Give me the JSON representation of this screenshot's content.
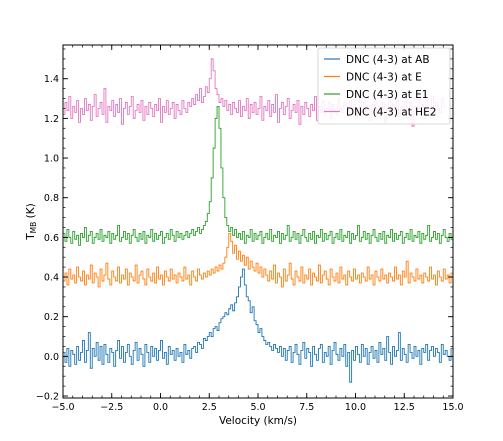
{
  "chart_data": {
    "type": "line",
    "step": true,
    "xlabel": "Velocity (km/s)",
    "ylabel": "T",
    "ylabel_subscript": "MB",
    "ylabel_unit": " (K)",
    "xlim": [
      -5.0,
      15.0
    ],
    "ylim": [
      -0.21,
      1.57
    ],
    "x_ticks": [
      -5.0,
      -2.5,
      0.0,
      2.5,
      5.0,
      7.5,
      10.0,
      12.5,
      15.0
    ],
    "x_tick_labels": [
      "−5.0",
      "−2.5",
      "0.0",
      "2.5",
      "5.0",
      "7.5",
      "10.0",
      "12.5",
      "15.0"
    ],
    "y_ticks": [
      -0.2,
      0.0,
      0.2,
      0.4,
      0.6,
      0.8,
      1.0,
      1.2,
      1.4
    ],
    "y_tick_labels": [
      "−0.2",
      "0.0",
      "0.2",
      "0.4",
      "0.6",
      "0.8",
      "1.0",
      "1.2",
      "1.4"
    ],
    "grid": false,
    "legend_position": "top-right",
    "x_start": -5.0,
    "x_step": 0.1,
    "series": [
      {
        "name": "DNC (4-3) at AB",
        "color": "#1f77b4",
        "values": [
          0.02,
          -0.03,
          0.04,
          -0.05,
          0.03,
          0.01,
          -0.04,
          0.05,
          -0.02,
          0.02,
          0.08,
          -0.03,
          0.03,
          0.12,
          -0.06,
          0.04,
          0.0,
          0.07,
          -0.02,
          0.05,
          -0.04,
          0.06,
          0.01,
          -0.03,
          0.04,
          0.02,
          -0.05,
          0.03,
          0.08,
          -0.01,
          0.05,
          -0.03,
          0.02,
          0.06,
          0.0,
          -0.04,
          0.03,
          0.07,
          -0.02,
          0.04,
          0.01,
          -0.05,
          0.06,
          0.02,
          -0.03,
          0.05,
          0.0,
          0.04,
          -0.02,
          0.03,
          0.08,
          -0.01,
          0.02,
          -0.04,
          0.05,
          0.01,
          0.03,
          -0.02,
          0.04,
          0.0,
          0.02,
          -0.03,
          0.06,
          0.01,
          0.03,
          -0.01,
          0.04,
          0.05,
          0.02,
          0.07,
          0.06,
          0.04,
          0.09,
          0.08,
          0.1,
          0.12,
          0.1,
          0.14,
          0.15,
          0.13,
          0.17,
          0.19,
          0.2,
          0.22,
          0.21,
          0.24,
          0.26,
          0.23,
          0.27,
          0.3,
          0.35,
          0.4,
          0.44,
          0.36,
          0.3,
          0.28,
          0.22,
          0.25,
          0.18,
          0.16,
          0.12,
          0.14,
          0.1,
          0.08,
          0.06,
          0.07,
          0.05,
          0.03,
          0.06,
          0.04,
          0.02,
          0.05,
          0.0,
          0.04,
          -0.02,
          0.03,
          0.05,
          -0.03,
          0.02,
          0.06,
          0.01,
          -0.04,
          0.03,
          0.07,
          -0.01,
          0.04,
          0.02,
          -0.05,
          0.05,
          0.01,
          -0.02,
          0.04,
          0.06,
          -0.03,
          0.02,
          0.0,
          0.05,
          -0.04,
          0.03,
          0.07,
          0.01,
          -0.02,
          0.04,
          0.0,
          0.06,
          -0.05,
          0.02,
          -0.13,
          0.03,
          -0.02,
          0.05,
          0.01,
          -0.03,
          0.06,
          0.0,
          0.04,
          -0.04,
          0.02,
          0.05,
          -0.01,
          0.03,
          -0.03,
          0.07,
          0.01,
          0.04,
          -0.02,
          0.1,
          0.02,
          -0.04,
          0.05,
          0.0,
          0.03,
          0.12,
          -0.02,
          0.04,
          0.01,
          -0.03,
          0.06,
          0.02,
          -0.01,
          0.05,
          0.0,
          0.03,
          -0.04,
          0.04,
          0.02,
          0.06,
          -0.02,
          0.03,
          0.05,
          0.0,
          0.04,
          0.02,
          -0.03,
          0.06,
          0.01,
          0.03,
          0.0,
          -0.02,
          0.04,
          0.02
        ]
      },
      {
        "name": "DNC (4-3) at E",
        "color": "#ff7f0e",
        "values": [
          0.38,
          0.42,
          0.36,
          0.44,
          0.39,
          0.41,
          0.37,
          0.45,
          0.4,
          0.38,
          0.43,
          0.36,
          0.41,
          0.39,
          0.46,
          0.37,
          0.42,
          0.4,
          0.35,
          0.44,
          0.38,
          0.41,
          0.47,
          0.39,
          0.36,
          0.43,
          0.4,
          0.38,
          0.45,
          0.37,
          0.41,
          0.39,
          0.44,
          0.36,
          0.42,
          0.4,
          0.38,
          0.46,
          0.37,
          0.41,
          0.43,
          0.39,
          0.36,
          0.44,
          0.4,
          0.38,
          0.42,
          0.37,
          0.45,
          0.39,
          0.41,
          0.36,
          0.43,
          0.4,
          0.38,
          0.44,
          0.39,
          0.41,
          0.37,
          0.42,
          0.4,
          0.38,
          0.45,
          0.39,
          0.41,
          0.36,
          0.43,
          0.4,
          0.38,
          0.44,
          0.41,
          0.39,
          0.42,
          0.4,
          0.43,
          0.41,
          0.44,
          0.42,
          0.45,
          0.43,
          0.46,
          0.44,
          0.47,
          0.5,
          0.55,
          0.62,
          0.58,
          0.52,
          0.56,
          0.49,
          0.53,
          0.48,
          0.51,
          0.46,
          0.5,
          0.44,
          0.48,
          0.45,
          0.43,
          0.47,
          0.42,
          0.45,
          0.4,
          0.44,
          0.41,
          0.38,
          0.43,
          0.39,
          0.46,
          0.37,
          0.42,
          0.4,
          0.35,
          0.44,
          0.38,
          0.41,
          0.47,
          0.39,
          0.36,
          0.43,
          0.4,
          0.38,
          0.45,
          0.37,
          0.41,
          0.39,
          0.44,
          0.36,
          0.42,
          0.4,
          0.38,
          0.46,
          0.37,
          0.41,
          0.43,
          0.39,
          0.36,
          0.44,
          0.4,
          0.38,
          0.42,
          0.37,
          0.45,
          0.39,
          0.41,
          0.36,
          0.43,
          0.4,
          0.38,
          0.44,
          0.39,
          0.41,
          0.37,
          0.42,
          0.4,
          0.38,
          0.45,
          0.39,
          0.41,
          0.36,
          0.43,
          0.4,
          0.38,
          0.44,
          0.39,
          0.41,
          0.37,
          0.42,
          0.4,
          0.38,
          0.45,
          0.39,
          0.41,
          0.36,
          0.43,
          0.4,
          0.48,
          0.37,
          0.42,
          0.4,
          0.38,
          0.44,
          0.39,
          0.41,
          0.37,
          0.42,
          0.4,
          0.38,
          0.45,
          0.39,
          0.41,
          0.36,
          0.43,
          0.4,
          0.38,
          0.44,
          0.39,
          0.41,
          0.37,
          0.42,
          0.4,
          0.35
        ]
      },
      {
        "name": "DNC (4-3) at E1",
        "color": "#2ca02c",
        "values": [
          0.62,
          0.58,
          0.64,
          0.6,
          0.57,
          0.63,
          0.59,
          0.61,
          0.56,
          0.62,
          0.6,
          0.65,
          0.58,
          0.61,
          0.63,
          0.57,
          0.6,
          0.62,
          0.59,
          0.64,
          0.58,
          0.61,
          0.6,
          0.63,
          0.57,
          0.62,
          0.59,
          0.61,
          0.66,
          0.58,
          0.6,
          0.63,
          0.59,
          0.62,
          0.57,
          0.61,
          0.64,
          0.6,
          0.58,
          0.62,
          0.59,
          0.63,
          0.57,
          0.61,
          0.6,
          0.64,
          0.58,
          0.62,
          0.59,
          0.61,
          0.63,
          0.57,
          0.6,
          0.62,
          0.59,
          0.64,
          0.61,
          0.58,
          0.63,
          0.6,
          0.62,
          0.59,
          0.61,
          0.63,
          0.6,
          0.62,
          0.64,
          0.61,
          0.63,
          0.65,
          0.62,
          0.64,
          0.66,
          0.68,
          0.72,
          0.78,
          0.9,
          1.05,
          1.2,
          1.26,
          1.15,
          0.95,
          0.8,
          0.7,
          0.66,
          0.63,
          0.65,
          0.61,
          0.64,
          0.6,
          0.62,
          0.59,
          0.63,
          0.57,
          0.61,
          0.6,
          0.64,
          0.58,
          0.62,
          0.59,
          0.61,
          0.63,
          0.57,
          0.6,
          0.62,
          0.59,
          0.64,
          0.58,
          0.61,
          0.6,
          0.63,
          0.57,
          0.62,
          0.59,
          0.61,
          0.66,
          0.58,
          0.6,
          0.63,
          0.59,
          0.62,
          0.57,
          0.61,
          0.64,
          0.6,
          0.58,
          0.62,
          0.59,
          0.63,
          0.57,
          0.61,
          0.6,
          0.64,
          0.58,
          0.62,
          0.59,
          0.61,
          0.63,
          0.57,
          0.6,
          0.62,
          0.59,
          0.64,
          0.58,
          0.61,
          0.6,
          0.63,
          0.57,
          0.62,
          0.59,
          0.61,
          0.66,
          0.58,
          0.6,
          0.63,
          0.59,
          0.62,
          0.57,
          0.61,
          0.64,
          0.6,
          0.58,
          0.62,
          0.59,
          0.63,
          0.57,
          0.61,
          0.6,
          0.64,
          0.58,
          0.62,
          0.59,
          0.61,
          0.63,
          0.57,
          0.6,
          0.62,
          0.59,
          0.64,
          0.58,
          0.61,
          0.6,
          0.63,
          0.57,
          0.62,
          0.59,
          0.61,
          0.66,
          0.58,
          0.6,
          0.63,
          0.59,
          0.62,
          0.57,
          0.61,
          0.64,
          0.6,
          0.58,
          0.62,
          0.59,
          0.63
        ]
      },
      {
        "name": "DNC (4-3) at HE2",
        "color": "#e377c2",
        "values": [
          1.22,
          1.28,
          1.24,
          1.31,
          1.2,
          1.26,
          1.23,
          1.29,
          1.18,
          1.25,
          1.22,
          1.3,
          1.24,
          1.27,
          1.19,
          1.26,
          1.32,
          1.21,
          1.25,
          1.28,
          1.22,
          1.35,
          1.18,
          1.26,
          1.24,
          1.29,
          1.21,
          1.27,
          1.23,
          1.3,
          1.17,
          1.25,
          1.28,
          1.22,
          1.26,
          1.31,
          1.2,
          1.24,
          1.27,
          1.23,
          1.29,
          1.19,
          1.26,
          1.22,
          1.28,
          1.25,
          1.21,
          1.27,
          1.24,
          1.3,
          1.18,
          1.26,
          1.23,
          1.29,
          1.22,
          1.25,
          1.28,
          1.2,
          1.27,
          1.24,
          1.22,
          1.29,
          1.25,
          1.23,
          1.28,
          1.26,
          1.3,
          1.27,
          1.32,
          1.29,
          1.35,
          1.28,
          1.31,
          1.36,
          1.33,
          1.4,
          1.5,
          1.44,
          1.35,
          1.32,
          1.28,
          1.3,
          1.26,
          1.29,
          1.24,
          1.27,
          1.22,
          1.28,
          1.25,
          1.23,
          1.29,
          1.21,
          1.26,
          1.24,
          1.3,
          1.2,
          1.27,
          1.23,
          1.28,
          1.22,
          1.25,
          1.31,
          1.19,
          1.26,
          1.24,
          1.29,
          1.21,
          1.27,
          1.23,
          1.32,
          1.18,
          1.25,
          1.28,
          1.22,
          1.26,
          1.3,
          1.2,
          1.24,
          1.27,
          1.23,
          1.29,
          1.17,
          1.26,
          1.22,
          1.28,
          1.25,
          1.21,
          1.27,
          1.24,
          1.31,
          1.19,
          1.26,
          1.23,
          1.29,
          1.22,
          1.25,
          1.28,
          1.2,
          1.27,
          1.24,
          1.22,
          1.3,
          1.25,
          1.23,
          1.28,
          1.26,
          1.21,
          1.29,
          1.24,
          1.27,
          1.2,
          1.25,
          1.3,
          1.23,
          1.28,
          1.22,
          1.26,
          1.19,
          1.27,
          1.24,
          1.29,
          1.21,
          1.26,
          1.23,
          1.28,
          1.18,
          1.25,
          1.31,
          1.22,
          1.27,
          1.24,
          1.29,
          1.21,
          1.26,
          1.23,
          1.3,
          1.2,
          1.25,
          1.28,
          1.16,
          1.26,
          1.24,
          1.33,
          1.22,
          1.27,
          1.2,
          1.29,
          1.24,
          1.26,
          1.31,
          1.22,
          1.28,
          1.25,
          1.23,
          1.3,
          1.26
        ]
      }
    ]
  }
}
